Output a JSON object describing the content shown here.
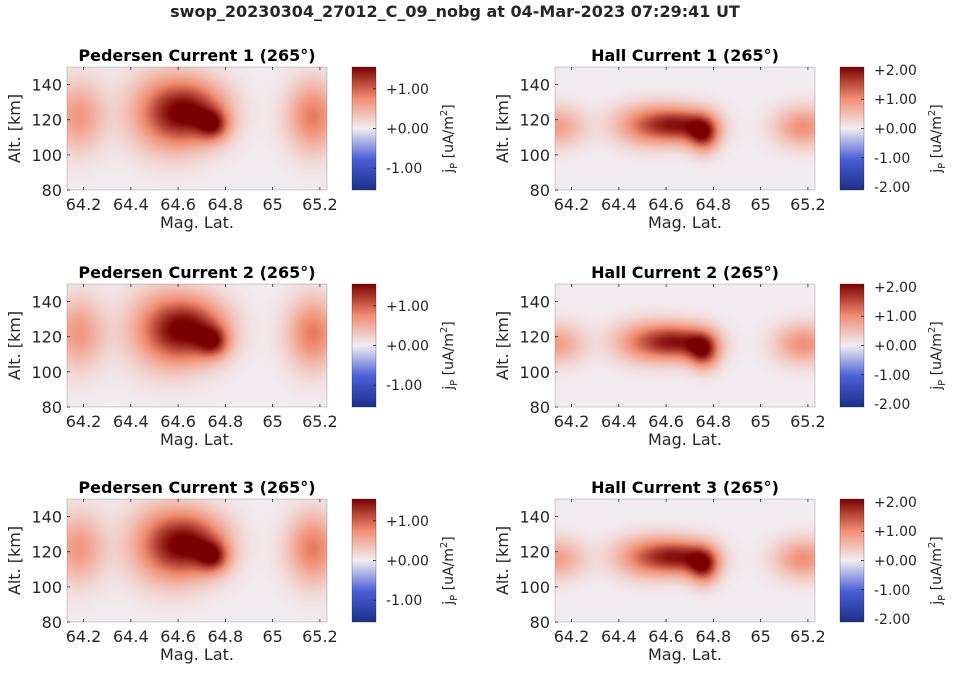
{
  "figure": {
    "suptitle": "swop_20230304_27012_C_09_nobg at 04-Mar-2023 07:29:41 UT"
  },
  "colormap": {
    "name": "diverging blue-white-red",
    "stops": [
      "#1a2f8a",
      "#4b5fd6",
      "#f2eef3",
      "#f08a6e",
      "#7a0000"
    ]
  },
  "chart_data": [
    {
      "type": "heatmap",
      "title": "Pedersen Current 1 (265°)",
      "xlabel": "Mag. Lat.",
      "ylabel": "Alt. [km]",
      "xlim": [
        64.13,
        65.23
      ],
      "ylim": [
        80,
        150
      ],
      "xticks": [
        64.2,
        64.4,
        64.6,
        64.8,
        65,
        65.2
      ],
      "xtick_labels": [
        "64.2",
        "64.4",
        "64.6",
        "64.8",
        "65",
        "65.2"
      ],
      "yticks": [
        80,
        100,
        120,
        140
      ],
      "ytick_labels": [
        "80",
        "100",
        "120",
        "140"
      ],
      "colorbar": {
        "label": "j",
        "label_sub": "P",
        "label_unit": " [uA/m",
        "label_sup": "2",
        "label_end": "]",
        "clim": [
          -1.55,
          1.55
        ],
        "ticks": [
          1,
          0,
          -1
        ],
        "tick_labels": [
          "+1.00",
          "+0.00",
          "-1.00"
        ]
      },
      "peak_value": 1.6,
      "peak_position": [
        64.72,
        121
      ],
      "background_value": 0.02
    },
    {
      "type": "heatmap",
      "title": "Hall Current 1 (265°)",
      "xlabel": "Mag. Lat.",
      "ylabel": "Alt. [km]",
      "xlim": [
        64.13,
        65.23
      ],
      "ylim": [
        80,
        150
      ],
      "xticks": [
        64.2,
        64.4,
        64.6,
        64.8,
        65,
        65.2
      ],
      "xtick_labels": [
        "64.2",
        "64.4",
        "64.6",
        "64.8",
        "65",
        "65.2"
      ],
      "yticks": [
        80,
        100,
        120,
        140
      ],
      "ytick_labels": [
        "80",
        "100",
        "120",
        "140"
      ],
      "colorbar": {
        "label": "j",
        "label_sub": "P",
        "label_unit": " [uA/m",
        "label_sup": "2",
        "label_end": "]",
        "clim": [
          -2.1,
          2.1
        ],
        "ticks": [
          2,
          1,
          0,
          -1,
          -2
        ],
        "tick_labels": [
          "+2.00",
          "+1.00",
          "+0.00",
          "-1.00",
          "-2.00"
        ]
      },
      "peak_value": 2.1,
      "peak_position": [
        64.77,
        112
      ],
      "background_value": 0.02
    },
    {
      "type": "heatmap",
      "title": "Pedersen Current 2 (265°)",
      "xlabel": "Mag. Lat.",
      "ylabel": "Alt. [km]",
      "xlim": [
        64.13,
        65.23
      ],
      "ylim": [
        80,
        150
      ],
      "xticks": [
        64.2,
        64.4,
        64.6,
        64.8,
        65,
        65.2
      ],
      "xtick_labels": [
        "64.2",
        "64.4",
        "64.6",
        "64.8",
        "65",
        "65.2"
      ],
      "yticks": [
        80,
        100,
        120,
        140
      ],
      "ytick_labels": [
        "80",
        "100",
        "120",
        "140"
      ],
      "colorbar": {
        "label": "j",
        "label_sub": "P",
        "label_unit": " [uA/m",
        "label_sup": "2",
        "label_end": "]",
        "clim": [
          -1.55,
          1.55
        ],
        "ticks": [
          1,
          0,
          -1
        ],
        "tick_labels": [
          "+1.00",
          "+0.00",
          "-1.00"
        ]
      },
      "peak_value": 1.6,
      "peak_position": [
        64.72,
        121
      ],
      "background_value": 0.02
    },
    {
      "type": "heatmap",
      "title": "Hall Current 2 (265°)",
      "xlabel": "Mag. Lat.",
      "ylabel": "Alt. [km]",
      "xlim": [
        64.13,
        65.23
      ],
      "ylim": [
        80,
        150
      ],
      "xticks": [
        64.2,
        64.4,
        64.6,
        64.8,
        65,
        65.2
      ],
      "xtick_labels": [
        "64.2",
        "64.4",
        "64.6",
        "64.8",
        "65",
        "65.2"
      ],
      "yticks": [
        80,
        100,
        120,
        140
      ],
      "ytick_labels": [
        "80",
        "100",
        "120",
        "140"
      ],
      "colorbar": {
        "label": "j",
        "label_sub": "P",
        "label_unit": " [uA/m",
        "label_sup": "2",
        "label_end": "]",
        "clim": [
          -2.1,
          2.1
        ],
        "ticks": [
          2,
          1,
          0,
          -1,
          -2
        ],
        "tick_labels": [
          "+2.00",
          "+1.00",
          "+0.00",
          "-1.00",
          "-2.00"
        ]
      },
      "peak_value": 2.1,
      "peak_position": [
        64.77,
        112
      ],
      "background_value": 0.02
    },
    {
      "type": "heatmap",
      "title": "Pedersen Current 3 (265°)",
      "xlabel": "Mag. Lat.",
      "ylabel": "Alt. [km]",
      "xlim": [
        64.13,
        65.23
      ],
      "ylim": [
        80,
        150
      ],
      "xticks": [
        64.2,
        64.4,
        64.6,
        64.8,
        65,
        65.2
      ],
      "xtick_labels": [
        "64.2",
        "64.4",
        "64.6",
        "64.8",
        "65",
        "65.2"
      ],
      "yticks": [
        80,
        100,
        120,
        140
      ],
      "ytick_labels": [
        "80",
        "100",
        "120",
        "140"
      ],
      "colorbar": {
        "label": "j",
        "label_sub": "P",
        "label_unit": " [uA/m",
        "label_sup": "2",
        "label_end": "]",
        "clim": [
          -1.55,
          1.55
        ],
        "ticks": [
          1,
          0,
          -1
        ],
        "tick_labels": [
          "+1.00",
          "+0.00",
          "-1.00"
        ]
      },
      "peak_value": 1.6,
      "peak_position": [
        64.72,
        121
      ],
      "background_value": 0.02
    },
    {
      "type": "heatmap",
      "title": "Hall Current 3 (265°)",
      "xlabel": "Mag. Lat.",
      "ylabel": "Alt. [km]",
      "xlim": [
        64.13,
        65.23
      ],
      "ylim": [
        80,
        150
      ],
      "xticks": [
        64.2,
        64.4,
        64.6,
        64.8,
        65,
        65.2
      ],
      "xtick_labels": [
        "64.2",
        "64.4",
        "64.6",
        "64.8",
        "65",
        "65.2"
      ],
      "yticks": [
        80,
        100,
        120,
        140
      ],
      "ytick_labels": [
        "80",
        "100",
        "120",
        "140"
      ],
      "colorbar": {
        "label": "j",
        "label_sub": "P",
        "label_unit": " [uA/m",
        "label_sup": "2",
        "label_end": "]",
        "clim": [
          -2.1,
          2.1
        ],
        "ticks": [
          2,
          1,
          0,
          -1,
          -2
        ],
        "tick_labels": [
          "+2.00",
          "+1.00",
          "+0.00",
          "-1.00",
          "-2.00"
        ]
      },
      "peak_value": 2.1,
      "peak_position": [
        64.77,
        112
      ],
      "background_value": 0.02
    }
  ]
}
